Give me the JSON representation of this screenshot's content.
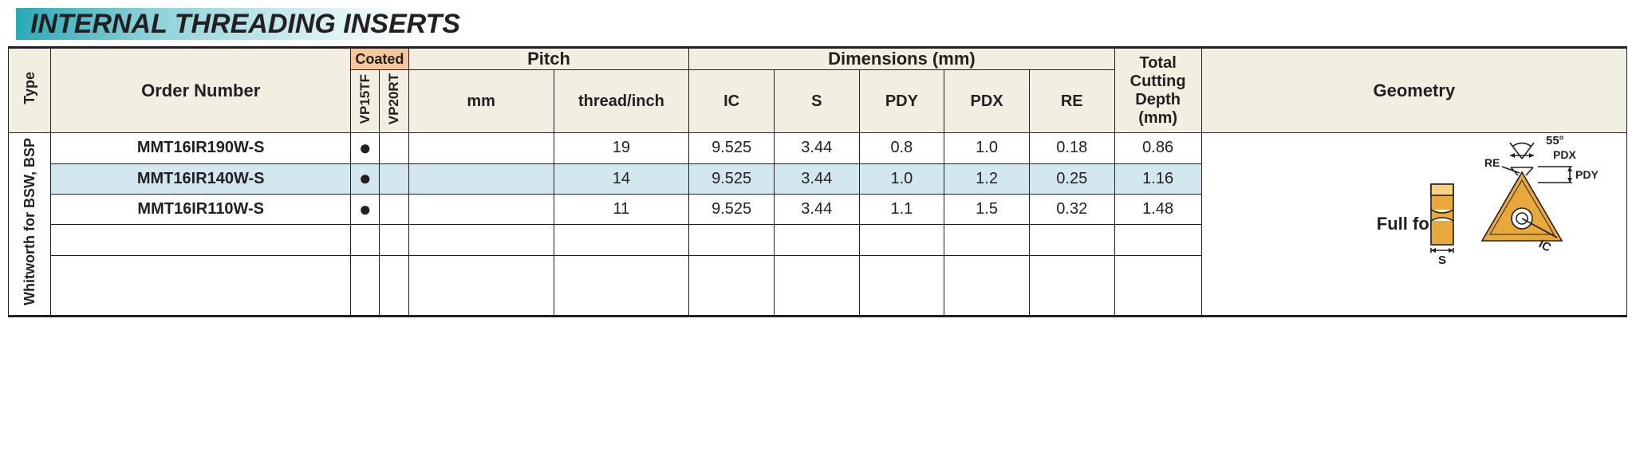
{
  "title": "INTERNAL THREADING INSERTS",
  "title_gradient_from": "#2aa9b8",
  "title_gradient_to": "#ffffff",
  "headers": {
    "type": "Type",
    "order_number": "Order Number",
    "coated": "Coated",
    "coat_cols": [
      "VP15TF",
      "VP20RT"
    ],
    "pitch": "Pitch",
    "pitch_mm": "mm",
    "pitch_tpi": "thread/inch",
    "dimensions": "Dimensions (mm)",
    "dim_cols": [
      "IC",
      "S",
      "PDY",
      "PDX",
      "RE"
    ],
    "total_depth": "Total Cutting Depth (mm)",
    "total_depth_l1": "Total",
    "total_depth_l2": "Cutting",
    "total_depth_l3": "Depth",
    "total_depth_l4": "(mm)",
    "geometry": "Geometry"
  },
  "type_label": "Whitworth for BSW, BSP",
  "geometry_label": "Full form",
  "geometry_diagram": {
    "angle_label": "55°",
    "labels": [
      "PDX",
      "RE",
      "PDY",
      "IC",
      "S"
    ],
    "insert_color": "#e8a93a",
    "insert_highlight": "#f6d184",
    "line_color": "#231f20"
  },
  "rows": [
    {
      "order": "MMT16IR190W-S",
      "vp15tf": true,
      "vp20rt": false,
      "pitch_mm": "",
      "tpi": "19",
      "ic": "9.525",
      "s": "3.44",
      "pdy": "0.8",
      "pdx": "1.0",
      "re": "0.18",
      "depth": "0.86",
      "highlight": false
    },
    {
      "order": "MMT16IR140W-S",
      "vp15tf": true,
      "vp20rt": false,
      "pitch_mm": "",
      "tpi": "14",
      "ic": "9.525",
      "s": "3.44",
      "pdy": "1.0",
      "pdx": "1.2",
      "re": "0.25",
      "depth": "1.16",
      "highlight": true
    },
    {
      "order": "MMT16IR110W-S",
      "vp15tf": true,
      "vp20rt": false,
      "pitch_mm": "",
      "tpi": "11",
      "ic": "9.525",
      "s": "3.44",
      "pdy": "1.1",
      "pdx": "1.5",
      "re": "0.32",
      "depth": "1.48",
      "highlight": false
    }
  ],
  "empty_rows": 3,
  "colors": {
    "header_bg": "#f2efe2",
    "coated_bg": "#f6c79b",
    "highlight_row": "#d3e7ee",
    "border": "#231f20",
    "text": "#231f20"
  }
}
